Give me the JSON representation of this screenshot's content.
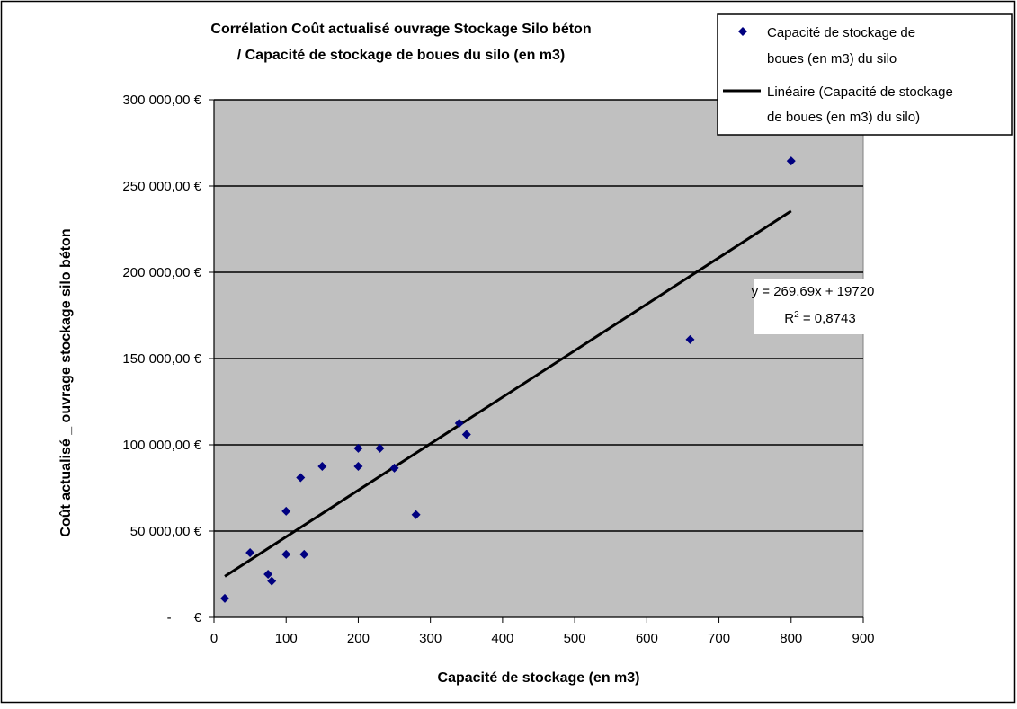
{
  "chart_data": {
    "type": "scatter",
    "title_lines": [
      "Corrélation  Coût actualisé ouvrage Stockage Silo béton",
      "/ Capacité de stockage de boues du silo (en m3)"
    ],
    "xlabel": "Capacité de stockage (en m3)",
    "ylabel": "Coût actualisé _ ouvrage stockage silo béton",
    "xlim": [
      0,
      900
    ],
    "ylim": [
      0,
      300000
    ],
    "x_ticks": [
      0,
      100,
      200,
      300,
      400,
      500,
      600,
      700,
      800,
      900
    ],
    "x_tick_labels": [
      "0",
      "100",
      "200",
      "300",
      "400",
      "500",
      "600",
      "700",
      "800",
      "900"
    ],
    "y_ticks": [
      0,
      50000,
      100000,
      150000,
      200000,
      250000,
      300000
    ],
    "y_tick_labels": [
      "-      €",
      "50 000,00 €",
      "100 000,00 €",
      "150 000,00 €",
      "200 000,00 €",
      "250 000,00 €",
      "300 000,00 €"
    ],
    "grid": "horizontal",
    "plot_background": "#c0c0c0",
    "marker_color": "#000080",
    "trend_color": "#000000",
    "series": [
      {
        "legend_lines": [
          "Capacité de stockage de",
          "boues (en m3) du silo"
        ],
        "points": [
          {
            "x": 15,
            "y": 11000
          },
          {
            "x": 50,
            "y": 37500
          },
          {
            "x": 75,
            "y": 25000
          },
          {
            "x": 80,
            "y": 21000
          },
          {
            "x": 100,
            "y": 61500
          },
          {
            "x": 100,
            "y": 36500
          },
          {
            "x": 120,
            "y": 81000
          },
          {
            "x": 125,
            "y": 36500
          },
          {
            "x": 150,
            "y": 87500
          },
          {
            "x": 200,
            "y": 98000
          },
          {
            "x": 200,
            "y": 87500
          },
          {
            "x": 230,
            "y": 98000
          },
          {
            "x": 250,
            "y": 86500
          },
          {
            "x": 280,
            "y": 59500
          },
          {
            "x": 340,
            "y": 112500
          },
          {
            "x": 350,
            "y": 106000
          },
          {
            "x": 660,
            "y": 161000
          },
          {
            "x": 800,
            "y": 264500
          }
        ]
      }
    ],
    "trendline": {
      "legend_lines": [
        "Linéaire (Capacité de stockage",
        "de boues (en m3) du silo)"
      ],
      "slope": 269.69,
      "intercept": 19720,
      "x_range": [
        15,
        800
      ],
      "equation": "y = 269,69x + 19720",
      "r2_value": " = 0,8743"
    },
    "legend_position": "top-right"
  }
}
